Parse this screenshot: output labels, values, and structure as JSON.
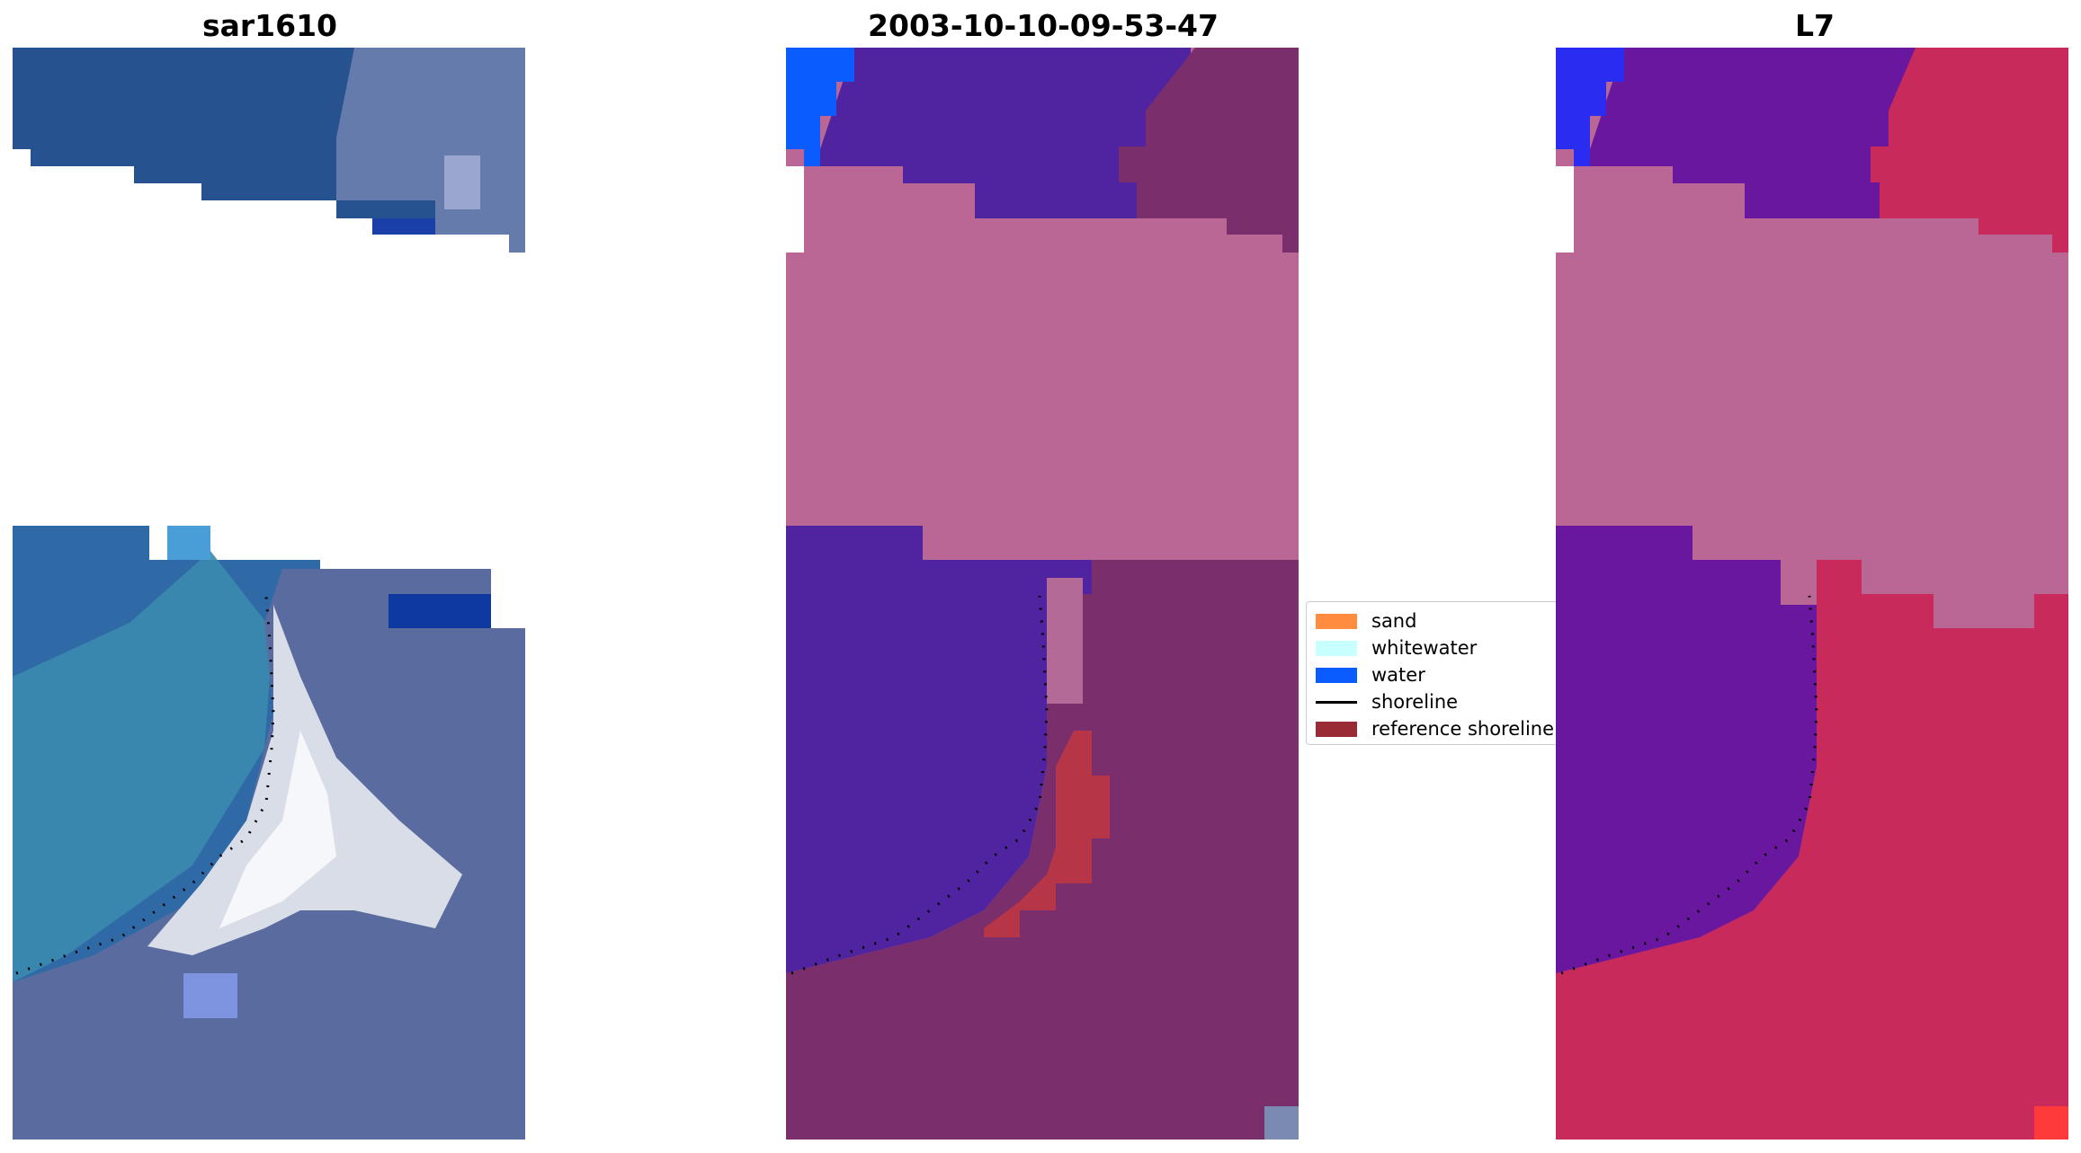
{
  "titles": {
    "left": "sar1610",
    "center": "2003-10-10-09-53-47",
    "right": "L7"
  },
  "legend": {
    "items": [
      {
        "label": "sand",
        "color": "#ff8c3f"
      },
      {
        "label": "whitewater",
        "color": "#c8ffff"
      },
      {
        "label": "water",
        "color": "#0a5cff"
      },
      {
        "label": "shoreline",
        "color": "#000000"
      },
      {
        "label": "reference shoreline",
        "color": "#9a2a35"
      }
    ]
  },
  "colors": {
    "nodata": "#ffffff",
    "sar_water": "#26528f",
    "sar_deep": "#1a2f8f",
    "sar_shallow": "#3b8ab0",
    "sar_land": "#5a6c9f",
    "sar_bright": "#f2f4f7",
    "cls_water_purple": "#5023a0",
    "cls_mask": "#ba6796",
    "cls_land": "#7a2e6b",
    "cls_ref": "#b63648",
    "l7_water": "#6a17a0",
    "l7_mask": "#ba6796",
    "l7_land": "#c82a5c"
  }
}
